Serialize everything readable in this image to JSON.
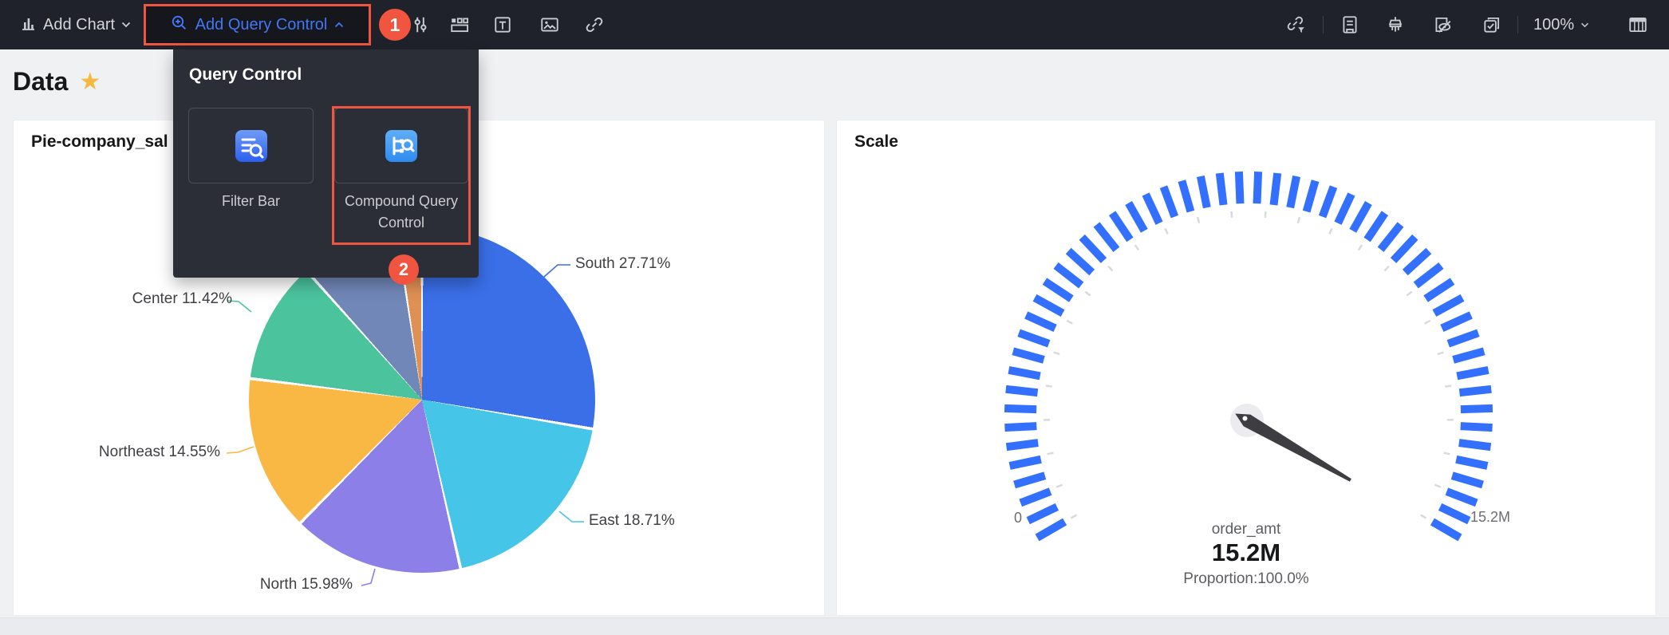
{
  "toolbar": {
    "add_chart": "Add Chart",
    "add_query_control": "Add Query Control",
    "zoom_level": "100%",
    "badge_step_1": "1",
    "accent_blue": "#4277F5",
    "highlight_red": "#F1543F",
    "icons": [
      "bar-chart",
      "caret-down",
      "zoom-plus",
      "caret-up",
      "sliders",
      "tab-widget",
      "text",
      "image",
      "link",
      "link-filter",
      "document",
      "clear-brush",
      "hide-document",
      "multi-select",
      "grid-table"
    ]
  },
  "page": {
    "heading": "Data",
    "star_color": "#F5B840"
  },
  "dropdown": {
    "title": "Query Control",
    "items": [
      {
        "label": "Filter Bar",
        "icon": "filter-bar-icon"
      },
      {
        "label": "Compound Query Control",
        "icon": "compound-query-icon"
      }
    ],
    "badge_step_2": "2"
  },
  "cards": {
    "pie_title": "Pie-company_sal",
    "gauge_title": "Scale"
  },
  "chart_data": [
    {
      "type": "pie",
      "title": "Pie-company_sal",
      "label_format": "{name} {pct}%",
      "slices": [
        {
          "label": "South",
          "pct": 27.71,
          "color": "#3A6FE8",
          "label_visible": true
        },
        {
          "label": "East",
          "pct": 18.71,
          "color": "#45C5E8",
          "label_visible": true
        },
        {
          "label": "North",
          "pct": 15.98,
          "color": "#8C80E8",
          "label_visible": true
        },
        {
          "label": "Northeast",
          "pct": 14.55,
          "color": "#F9B844",
          "label_visible": true
        },
        {
          "label": "Center",
          "pct": 11.42,
          "color": "#4BC49E",
          "label_visible": true
        },
        {
          "label": "",
          "pct": 9.26,
          "color": "#7187B8",
          "label_visible": false
        },
        {
          "label": "",
          "pct": 2.37,
          "color": "#DF9055",
          "label_visible": false
        }
      ]
    },
    {
      "type": "gauge",
      "title": "Scale",
      "min_label": "0",
      "max_label": "15.2M",
      "metric": "order_amt",
      "value_label": "15.2M",
      "proportion_label": "Proportion:100.0%",
      "value_fraction": 1.0,
      "start_angle_deg": 210,
      "end_angle_deg": -30,
      "major_tick_count": 54,
      "minor_tick_count": 26,
      "tick_color": "#3370FF",
      "minor_tick_color": "#D9DADE",
      "needle_color": "#3D3D42"
    }
  ]
}
